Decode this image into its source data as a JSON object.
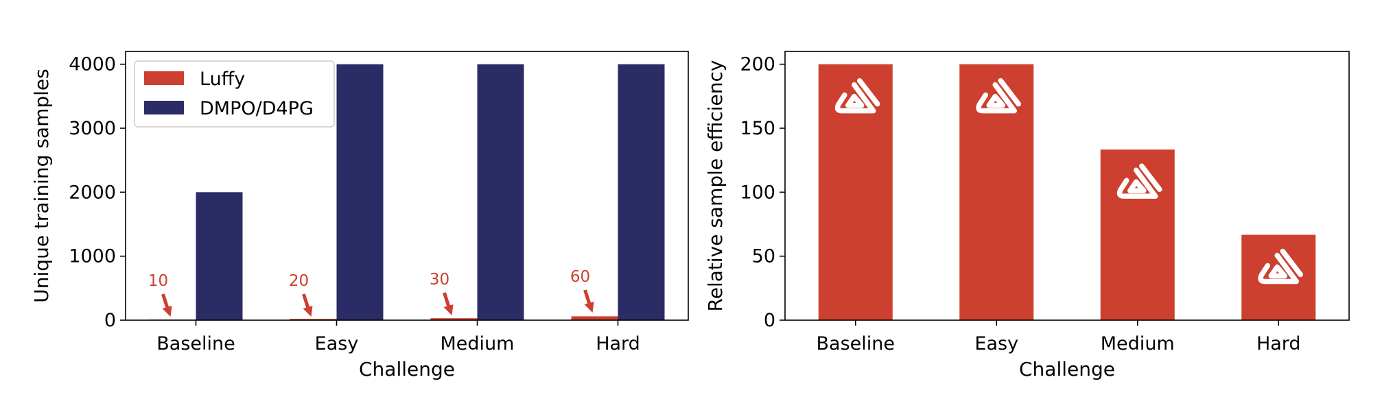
{
  "colors": {
    "luffy": "#cd3f2e",
    "dmpo": "#2b2c66",
    "annotation": "#cd3f2e",
    "logo": "#ffffff"
  },
  "chart_data": [
    {
      "type": "bar",
      "categories": [
        "Baseline",
        "Easy",
        "Medium",
        "Hard"
      ],
      "series": [
        {
          "name": "Luffy",
          "values": [
            10,
            20,
            30,
            60
          ]
        },
        {
          "name": "DMPO/D4PG",
          "values": [
            2000,
            4000,
            4000,
            4000
          ]
        }
      ],
      "xlabel": "Challenge",
      "ylabel": "Unique training samples",
      "ylim": [
        0,
        4200
      ],
      "yticks": [
        0,
        1000,
        2000,
        3000,
        4000
      ],
      "ytick_labels": [
        "0",
        "1000",
        "2000",
        "3000",
        "4000"
      ],
      "annotations": [
        "10",
        "20",
        "30",
        "60"
      ],
      "legend_position": "top-left",
      "grid": false
    },
    {
      "type": "bar",
      "categories": [
        "Baseline",
        "Easy",
        "Medium",
        "Hard"
      ],
      "series": [
        {
          "values": [
            200,
            200,
            133.3,
            66.7
          ]
        }
      ],
      "xlabel": "Challenge",
      "ylabel": "Relative sample efficiency",
      "ylim": [
        0,
        210
      ],
      "yticks": [
        0,
        50,
        100,
        150,
        200
      ],
      "ytick_labels": [
        "0",
        "50",
        "100",
        "150",
        "200"
      ],
      "bar_icon": "luffy-logo-icon",
      "grid": false
    }
  ]
}
